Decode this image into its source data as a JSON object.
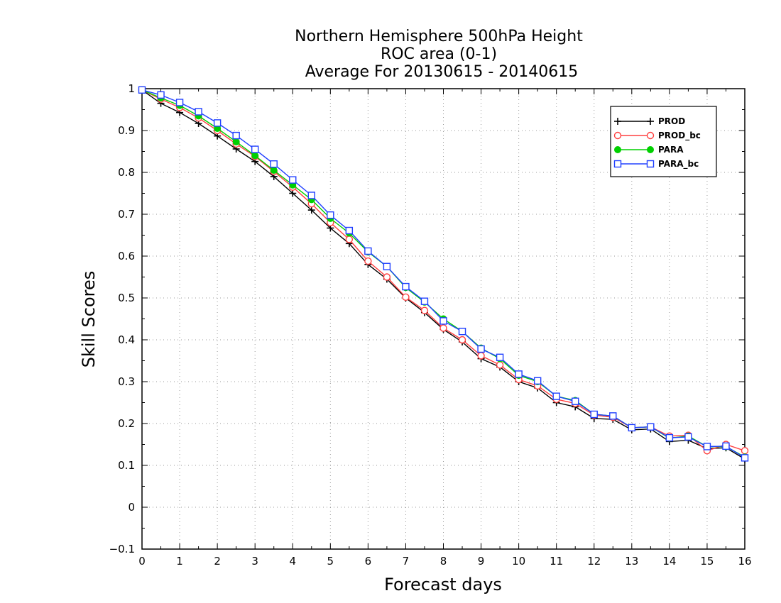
{
  "chart_data": {
    "type": "line",
    "title_lines": [
      "Northern Hemisphere 500hPa Height",
      "ROC area (0-1)",
      "Average For 20130615 - 20140615"
    ],
    "xlabel": "Forecast days",
    "ylabel": "Skill Scores",
    "xlim": [
      0,
      16
    ],
    "ylim": [
      -0.1,
      1
    ],
    "x_ticks": [
      "0",
      "1",
      "2",
      "3",
      "4",
      "5",
      "6",
      "7",
      "8",
      "9",
      "10",
      "11",
      "12",
      "13",
      "14",
      "15",
      "16"
    ],
    "y_ticks": [
      "−0.1",
      "0",
      "0.1",
      "0.2",
      "0.3",
      "0.4",
      "0.5",
      "0.6",
      "0.7",
      "0.8",
      "0.9",
      "1"
    ],
    "grid": true,
    "legend_position": "top-right",
    "x": [
      0,
      0.5,
      1,
      1.5,
      2,
      2.5,
      3,
      3.5,
      4,
      4.5,
      5,
      5.5,
      6,
      6.5,
      7,
      7.5,
      8,
      8.5,
      9,
      9.5,
      10,
      10.5,
      11,
      11.5,
      12,
      12.5,
      13,
      13.5,
      14,
      14.5,
      15,
      15.5,
      16
    ],
    "series": [
      {
        "name": "PROD",
        "color": "#000000",
        "marker": "plus",
        "values": [
          0.997,
          0.965,
          0.943,
          0.917,
          0.887,
          0.856,
          0.826,
          0.79,
          0.75,
          0.71,
          0.667,
          0.63,
          0.58,
          0.545,
          0.5,
          0.465,
          0.425,
          0.395,
          0.355,
          0.335,
          0.3,
          0.285,
          0.25,
          0.24,
          0.212,
          0.21,
          0.185,
          0.187,
          0.157,
          0.16,
          0.14,
          0.142,
          0.115
        ]
      },
      {
        "name": "PROD_bc",
        "color": "#ff4040",
        "marker": "circle",
        "values": [
          0.997,
          0.975,
          0.955,
          0.93,
          0.9,
          0.868,
          0.838,
          0.802,
          0.765,
          0.725,
          0.68,
          0.64,
          0.588,
          0.55,
          0.502,
          0.47,
          0.428,
          0.4,
          0.362,
          0.34,
          0.305,
          0.29,
          0.258,
          0.248,
          0.22,
          0.215,
          0.19,
          0.192,
          0.17,
          0.172,
          0.135,
          0.15,
          0.135
        ]
      },
      {
        "name": "PARA",
        "color": "#00d000",
        "marker": "filled-circle",
        "values": [
          0.997,
          0.978,
          0.96,
          0.935,
          0.905,
          0.873,
          0.84,
          0.805,
          0.77,
          0.735,
          0.69,
          0.655,
          0.61,
          0.575,
          0.525,
          0.49,
          0.45,
          0.42,
          0.38,
          0.355,
          0.315,
          0.3,
          0.265,
          0.255,
          0.222,
          0.218,
          0.19,
          0.192,
          0.165,
          0.17,
          0.145,
          0.145,
          0.12
        ]
      },
      {
        "name": "PARA_bc",
        "color": "#2040ff",
        "marker": "square",
        "values": [
          0.997,
          0.985,
          0.967,
          0.945,
          0.918,
          0.888,
          0.855,
          0.82,
          0.782,
          0.745,
          0.698,
          0.661,
          0.612,
          0.575,
          0.527,
          0.492,
          0.445,
          0.42,
          0.378,
          0.358,
          0.318,
          0.302,
          0.265,
          0.253,
          0.222,
          0.218,
          0.19,
          0.192,
          0.166,
          0.168,
          0.145,
          0.146,
          0.118
        ]
      }
    ]
  }
}
